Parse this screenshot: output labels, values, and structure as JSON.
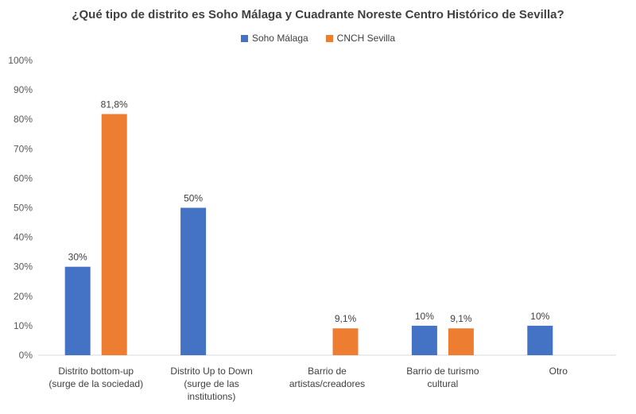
{
  "chart_data": {
    "type": "bar",
    "title": "¿Qué tipo de distrito es Soho Málaga y Cuadrante Noreste Centro Histórico de Sevilla?",
    "categories": [
      [
        "Distrito bottom-up",
        "(surge de la sociedad)"
      ],
      [
        "Distrito Up to Down",
        "(surge de las",
        "institutions)"
      ],
      [
        "Barrio de",
        "artistas/creadores"
      ],
      [
        "Barrio de turismo",
        "cultural"
      ],
      [
        "Otro"
      ]
    ],
    "series": [
      {
        "name": "Soho Málaga",
        "color": "#4472C4",
        "values": [
          30,
          50,
          null,
          10,
          10
        ],
        "labels": [
          "30%",
          "50%",
          "",
          "10%",
          "10%"
        ]
      },
      {
        "name": "CNCH Sevilla",
        "color": "#ED7D31",
        "values": [
          81.8,
          null,
          9.1,
          9.1,
          null
        ],
        "labels": [
          "81,8%",
          "",
          "9,1%",
          "9,1%",
          ""
        ]
      }
    ],
    "ylim": [
      0,
      100
    ],
    "yticks": [
      "0%",
      "10%",
      "20%",
      "30%",
      "40%",
      "50%",
      "60%",
      "70%",
      "80%",
      "90%",
      "100%"
    ],
    "legend_position": "top",
    "grid": false
  }
}
